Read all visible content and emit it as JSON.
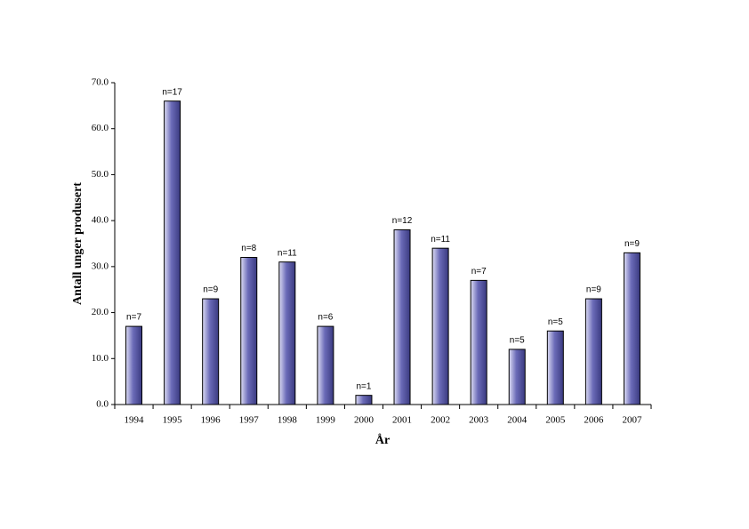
{
  "chart_data": {
    "type": "bar",
    "x_label": "År",
    "y_label": "Antall unger produsert",
    "categories": [
      "1994",
      "1995",
      "1996",
      "1997",
      "1998",
      "1999",
      "2000",
      "2001",
      "2002",
      "2003",
      "2004",
      "2005",
      "2006",
      "2007"
    ],
    "values": [
      17,
      66,
      23,
      32,
      31,
      17,
      2,
      38,
      34,
      27,
      12,
      16,
      23,
      33
    ],
    "sample_sizes": [
      "n=7",
      "n=17",
      "n=9",
      "n=8",
      "n=11",
      "n=6",
      "n=1",
      "n=12",
      "n=11",
      "n=7",
      "n=5",
      "n=5",
      "n=9",
      "n=9"
    ],
    "color": "#6b6bb8",
    "ylim": [
      0,
      70
    ],
    "yticks": [
      {
        "value": 0,
        "label": "0.0"
      },
      {
        "value": 10,
        "label": "10.0"
      },
      {
        "value": 20,
        "label": "20.0"
      },
      {
        "value": 30,
        "label": "30.0"
      },
      {
        "value": 40,
        "label": "40.0"
      },
      {
        "value": 50,
        "label": "50.0"
      },
      {
        "value": 60,
        "label": "60.0"
      },
      {
        "value": 70,
        "label": "70.0"
      }
    ],
    "grid": false
  }
}
